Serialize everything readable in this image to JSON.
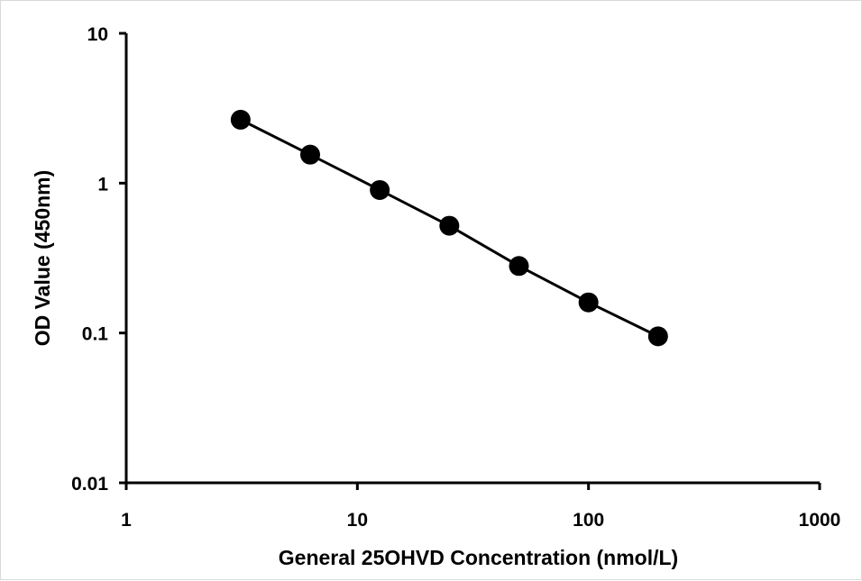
{
  "chart_data": {
    "type": "scatter",
    "title": "",
    "xlabel": "General 25OHVD Concentration (nmol/L)",
    "ylabel": "OD Value (450nm)",
    "x_scale": "log",
    "y_scale": "log",
    "xlim": [
      1,
      1000
    ],
    "ylim": [
      0.01,
      10
    ],
    "x_ticks": [
      "1",
      "10",
      "100",
      "1000"
    ],
    "y_ticks": [
      "0.01",
      "0.1",
      "1",
      "10"
    ],
    "grid": false,
    "legend": "none",
    "series": [
      {
        "x": [
          3.125,
          6.25,
          12.5,
          25,
          50,
          100,
          200
        ],
        "y": [
          2.65,
          1.55,
          0.9,
          0.52,
          0.28,
          0.16,
          0.095
        ],
        "color": "#000000",
        "marker": "circle",
        "connected": true
      }
    ]
  }
}
